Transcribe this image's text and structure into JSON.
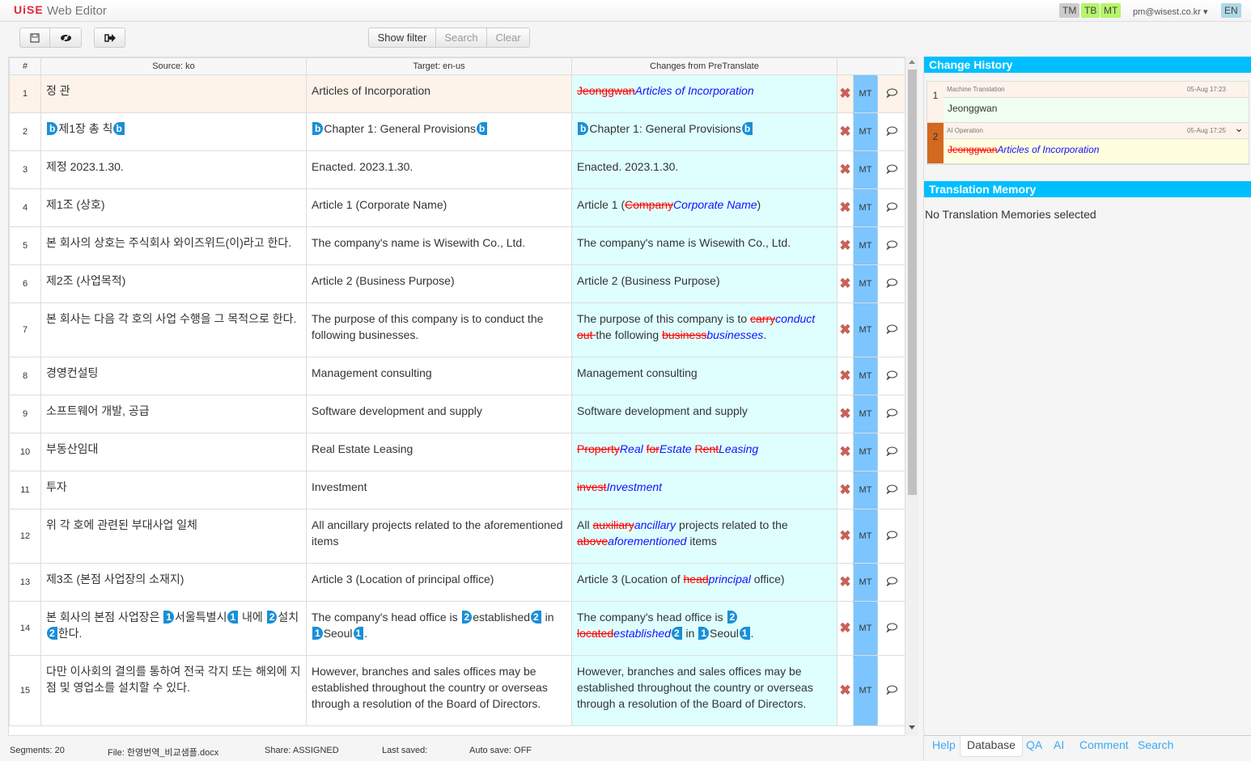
{
  "header": {
    "logo": "UiSE",
    "title": "Web Editor",
    "badges": [
      {
        "label": "TM",
        "color": "#cccccc"
      },
      {
        "label": "TB",
        "color": "#b5f56b"
      },
      {
        "label": "MT",
        "color": "#b5f56b"
      }
    ],
    "user": "pm@wisest.co.kr ▾",
    "lang": "EN",
    "lang_color": "#add8e6"
  },
  "toolbar": {
    "save_icon": "save-icon",
    "preview_icon": "eye-slash-icon",
    "export_icon": "sign-out-icon",
    "show_filter": "Show filter",
    "search": "Search",
    "clear": "Clear"
  },
  "grid": {
    "headers": {
      "num": "#",
      "source": "Source: ko",
      "target": "Target: en-us",
      "changes": "Changes from PreTranslate"
    },
    "mt_label": "MT",
    "rows": [
      {
        "n": "1",
        "src": [
          [
            "s",
            "정  관"
          ]
        ],
        "tgt": [
          [
            "s",
            "Articles of Incorporation"
          ]
        ],
        "chg": [
          [
            "d",
            "Jeonggwan"
          ],
          [
            "i",
            "Articles of Incorporation"
          ]
        ]
      },
      {
        "n": "2",
        "src": [
          [
            "to",
            "b"
          ],
          [
            "s",
            "제1장 총   칙"
          ],
          [
            "tc",
            "b"
          ]
        ],
        "tgt": [
          [
            "to",
            "b"
          ],
          [
            "s",
            "Chapter 1: General Provisions"
          ],
          [
            "tc",
            "b"
          ]
        ],
        "chg": [
          [
            "to",
            "b"
          ],
          [
            "s",
            "Chapter 1: General Provisions"
          ],
          [
            "tc",
            "b"
          ]
        ]
      },
      {
        "n": "3",
        "src": [
          [
            "s",
            "제정 2023.1.30."
          ]
        ],
        "tgt": [
          [
            "s",
            "Enacted. 2023.1.30."
          ]
        ],
        "chg": [
          [
            "s",
            "Enacted. 2023.1.30."
          ]
        ]
      },
      {
        "n": "4",
        "src": [
          [
            "s",
            "제1조 (상호)"
          ]
        ],
        "tgt": [
          [
            "s",
            "Article 1 (Corporate Name)"
          ]
        ],
        "chg": [
          [
            "s",
            "Article 1 ("
          ],
          [
            "d",
            "Company"
          ],
          [
            "i",
            "Corporate Name"
          ],
          [
            "s",
            ")"
          ]
        ]
      },
      {
        "n": "5",
        "src": [
          [
            "s",
            "본 회사의 상호는 주식회사 와이즈위드(이)라고 한다."
          ]
        ],
        "tgt": [
          [
            "s",
            "The company's name is Wisewith Co., Ltd."
          ]
        ],
        "chg": [
          [
            "s",
            "The company's name is Wisewith Co., Ltd."
          ]
        ]
      },
      {
        "n": "6",
        "src": [
          [
            "s",
            "제2조 (사업목적)"
          ]
        ],
        "tgt": [
          [
            "s",
            "Article 2 (Business Purpose)"
          ]
        ],
        "chg": [
          [
            "s",
            "Article 2 (Business Purpose)"
          ]
        ]
      },
      {
        "n": "7",
        "src": [
          [
            "s",
            "본 회사는 다음 각 호의 사업 수행을 그 목적으로 한다."
          ]
        ],
        "tgt": [
          [
            "s",
            "The purpose of this company is to conduct the following businesses."
          ]
        ],
        "chg": [
          [
            "s",
            "The purpose of this company is to "
          ],
          [
            "d",
            "carry"
          ],
          [
            "i",
            "conduct"
          ],
          [
            "s",
            " "
          ],
          [
            "d",
            "out "
          ],
          [
            "s",
            "the following "
          ],
          [
            "d",
            "business"
          ],
          [
            "i",
            "businesses"
          ],
          [
            "s",
            "."
          ]
        ]
      },
      {
        "n": "8",
        "src": [
          [
            "s",
            "경영컨설팅"
          ]
        ],
        "tgt": [
          [
            "s",
            "Management consulting"
          ]
        ],
        "chg": [
          [
            "s",
            "Management consulting"
          ]
        ]
      },
      {
        "n": "9",
        "src": [
          [
            "s",
            "소프트웨어 개발, 공급"
          ]
        ],
        "tgt": [
          [
            "s",
            "Software development and supply"
          ]
        ],
        "chg": [
          [
            "s",
            "Software development and supply"
          ]
        ]
      },
      {
        "n": "10",
        "src": [
          [
            "s",
            "부동산임대"
          ]
        ],
        "tgt": [
          [
            "s",
            "Real Estate Leasing"
          ]
        ],
        "chg": [
          [
            "d",
            "Property"
          ],
          [
            "i",
            "Real "
          ],
          [
            "d",
            "for"
          ],
          [
            "i",
            "Estate "
          ],
          [
            "d",
            "Rent"
          ],
          [
            "i",
            "Leasing"
          ]
        ]
      },
      {
        "n": "11",
        "src": [
          [
            "s",
            "투자"
          ]
        ],
        "tgt": [
          [
            "s",
            "Investment"
          ]
        ],
        "chg": [
          [
            "d",
            "invest"
          ],
          [
            "i",
            "Investment"
          ]
        ]
      },
      {
        "n": "12",
        "src": [
          [
            "s",
            "위 각 호에 관련된 부대사업 일체"
          ]
        ],
        "tgt": [
          [
            "s",
            "All ancillary projects related to the aforementioned items"
          ]
        ],
        "chg": [
          [
            "s",
            "All "
          ],
          [
            "d",
            "auxiliary"
          ],
          [
            "i",
            "ancillary"
          ],
          [
            "s",
            " projects related to the "
          ],
          [
            "d",
            "above"
          ],
          [
            "i",
            "aforementioned"
          ],
          [
            "s",
            " items"
          ]
        ]
      },
      {
        "n": "13",
        "src": [
          [
            "s",
            "제3조 (본점 사업장의 소재지)"
          ]
        ],
        "tgt": [
          [
            "s",
            "Article 3 (Location of principal office)"
          ]
        ],
        "chg": [
          [
            "s",
            "Article 3 (Location of "
          ],
          [
            "d",
            "head"
          ],
          [
            "i",
            "principal"
          ],
          [
            "s",
            " office)"
          ]
        ]
      },
      {
        "n": "14",
        "src": [
          [
            "s",
            "본 회사의 본점 사업장은 "
          ],
          [
            "to",
            "1"
          ],
          [
            "s",
            "서울특별시"
          ],
          [
            "tc",
            "1"
          ],
          [
            "s",
            " 내에 "
          ],
          [
            "to",
            "2"
          ],
          [
            "s",
            "설치"
          ],
          [
            "tc",
            "2"
          ],
          [
            "s",
            "한다."
          ]
        ],
        "tgt": [
          [
            "s",
            "The company's head office is "
          ],
          [
            "to",
            "2"
          ],
          [
            "s",
            "established"
          ],
          [
            "tc",
            "2"
          ],
          [
            "s",
            " in "
          ],
          [
            "to",
            "1"
          ],
          [
            "s",
            "Seoul"
          ],
          [
            "tc",
            "1"
          ],
          [
            "s",
            "."
          ]
        ],
        "chg": [
          [
            "s",
            "The company's head office is "
          ],
          [
            "to",
            "2"
          ],
          [
            "d",
            "located"
          ],
          [
            "i",
            "established"
          ],
          [
            "tc",
            "2"
          ],
          [
            "s",
            " in "
          ],
          [
            "to",
            "1"
          ],
          [
            "s",
            "Seoul"
          ],
          [
            "tc",
            "1"
          ],
          [
            "s",
            "."
          ]
        ]
      },
      {
        "n": "15",
        "src": [
          [
            "s",
            "다만 이사회의 결의를 통하여 전국 각지 또는 해외에 지점 및 영업소를 설치할 수 있다."
          ]
        ],
        "tgt": [
          [
            "s",
            "However, branches and sales offices may be established throughout the country or overseas through a resolution of the Board of Directors."
          ]
        ],
        "chg": [
          [
            "s",
            "However, branches and sales offices may be established throughout the country or overseas through a resolution of the Board of Directors."
          ]
        ]
      }
    ]
  },
  "status": {
    "segments": "Segments: 20",
    "file": "File: 한영번역_비교샘플.docx",
    "share": "Share: ASSIGNED",
    "last_saved": "Last saved:",
    "auto_save": "Auto save: OFF"
  },
  "change_history": {
    "title": "Change History",
    "entries": [
      {
        "num": "1",
        "type": "Machine Translation",
        "time": "05-Aug 17:23",
        "text": [
          [
            "s",
            "Jeonggwan"
          ]
        ],
        "bar": "#fdf3ea",
        "bg": "#f0fff0"
      },
      {
        "num": "2",
        "type": "AI Operation",
        "time": "05-Aug 17:25",
        "text": [
          [
            "d",
            "Jeonggwan"
          ],
          [
            "i",
            "Articles of Incorporation"
          ]
        ],
        "bar": "#d2691e",
        "bg": "#ffffe0"
      }
    ]
  },
  "translation_memory": {
    "title": "Translation Memory",
    "empty": "No Translation Memories selected"
  },
  "tabs": [
    {
      "label": "Help"
    },
    {
      "label": "Database",
      "selected": true
    },
    {
      "label": "QA"
    },
    {
      "label": "AI"
    },
    {
      "label": "Comment"
    },
    {
      "label": "Search"
    }
  ]
}
